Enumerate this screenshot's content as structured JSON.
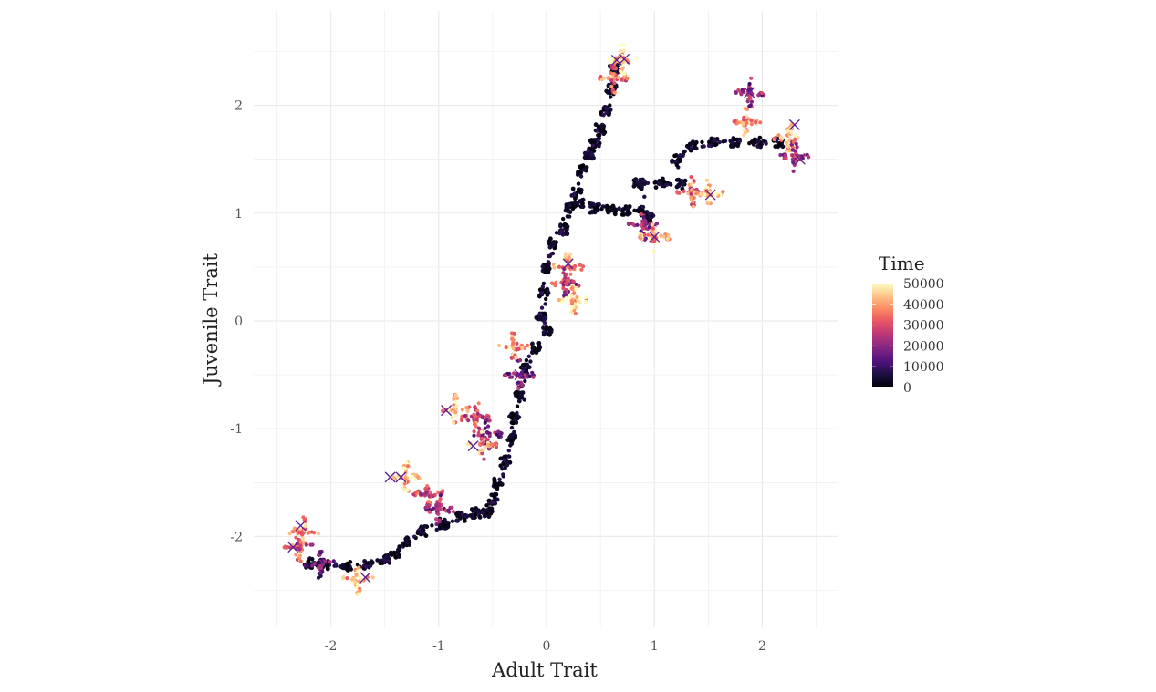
{
  "chart_data": {
    "type": "scatter",
    "xlabel": "Adult Trait",
    "ylabel": "Juvenile Trait",
    "xlim": [
      -2.6,
      2.7
    ],
    "ylim": [
      -2.85,
      2.6
    ],
    "x_ticks": [
      -2,
      -1,
      0,
      1,
      2
    ],
    "y_ticks": [
      -2,
      -1,
      0,
      1,
      2
    ],
    "x_tick_labels": [
      "-2",
      "-1",
      "0",
      "1",
      "2"
    ],
    "y_tick_labels": [
      "-2",
      "-1",
      "0",
      "1",
      "2"
    ],
    "grid": true,
    "legend": {
      "title": "Time",
      "placement": "right",
      "type": "colorbar",
      "range": [
        0,
        50000
      ],
      "breaks": [
        0,
        10000,
        20000,
        30000,
        40000,
        50000
      ],
      "labels": [
        "0",
        "10000",
        "20000",
        "30000",
        "40000",
        "50000"
      ]
    },
    "colormap": [
      "#000004",
      "#1c1044",
      "#4f127b",
      "#812581",
      "#b5367a",
      "#e55064",
      "#fb8761",
      "#fec287",
      "#fcfdbf"
    ],
    "trajectory": [
      [
        0.0,
        -0.1
      ],
      [
        -0.05,
        0.05
      ],
      [
        -0.02,
        0.25
      ],
      [
        0.0,
        0.5
      ],
      [
        0.05,
        0.72
      ],
      [
        0.15,
        0.85
      ],
      [
        0.22,
        1.05
      ],
      [
        0.28,
        1.2
      ],
      [
        0.33,
        1.4
      ],
      [
        0.4,
        1.55
      ],
      [
        0.45,
        1.65
      ],
      [
        0.5,
        1.78
      ],
      [
        0.55,
        1.95
      ],
      [
        0.6,
        2.15
      ],
      [
        0.62,
        2.35
      ],
      [
        0.3,
        1.1
      ],
      [
        0.45,
        1.05
      ],
      [
        0.6,
        1.03
      ],
      [
        0.75,
        1.03
      ],
      [
        0.9,
        1.02
      ],
      [
        0.95,
        0.95
      ],
      [
        0.85,
        1.27
      ],
      [
        1.05,
        1.28
      ],
      [
        1.25,
        1.27
      ],
      [
        1.2,
        1.5
      ],
      [
        1.35,
        1.62
      ],
      [
        1.55,
        1.65
      ],
      [
        1.75,
        1.66
      ],
      [
        1.95,
        1.66
      ],
      [
        2.15,
        1.66
      ],
      [
        -0.1,
        -0.25
      ],
      [
        -0.2,
        -0.45
      ],
      [
        -0.25,
        -0.7
      ],
      [
        -0.3,
        -0.9
      ],
      [
        -0.32,
        -1.1
      ],
      [
        -0.38,
        -1.3
      ],
      [
        -0.45,
        -1.5
      ],
      [
        -0.5,
        -1.65
      ],
      [
        -0.55,
        -1.78
      ],
      [
        -0.65,
        -1.78
      ],
      [
        -0.8,
        -1.82
      ],
      [
        -0.95,
        -1.88
      ],
      [
        -1.15,
        -1.95
      ],
      [
        -1.3,
        -2.05
      ],
      [
        -1.4,
        -2.15
      ],
      [
        -1.5,
        -2.22
      ],
      [
        -1.65,
        -2.26
      ],
      [
        -1.85,
        -2.27
      ],
      [
        -2.05,
        -2.26
      ],
      [
        -2.2,
        -2.25
      ]
    ],
    "clusters": [
      {
        "x": 0.62,
        "y": 2.25,
        "t": 35000
      },
      {
        "x": 0.7,
        "y": 2.42,
        "t": 45000
      },
      {
        "x": 1.88,
        "y": 2.12,
        "t": 20000
      },
      {
        "x": 1.85,
        "y": 1.85,
        "t": 38000
      },
      {
        "x": 2.25,
        "y": 1.7,
        "t": 42000
      },
      {
        "x": 2.3,
        "y": 1.52,
        "t": 25000
      },
      {
        "x": 1.35,
        "y": 1.2,
        "t": 35000
      },
      {
        "x": 1.5,
        "y": 1.18,
        "t": 45000
      },
      {
        "x": 0.9,
        "y": 0.88,
        "t": 22000
      },
      {
        "x": 1.0,
        "y": 0.78,
        "t": 40000
      },
      {
        "x": 0.2,
        "y": 0.5,
        "t": 40000
      },
      {
        "x": 0.18,
        "y": 0.35,
        "t": 25000
      },
      {
        "x": 0.25,
        "y": 0.2,
        "t": 45000
      },
      {
        "x": -0.3,
        "y": -0.25,
        "t": 40000
      },
      {
        "x": -0.25,
        "y": -0.5,
        "t": 18000
      },
      {
        "x": -0.85,
        "y": -0.82,
        "t": 42000
      },
      {
        "x": -0.65,
        "y": -0.9,
        "t": 30000
      },
      {
        "x": -0.55,
        "y": -1.05,
        "t": 20000
      },
      {
        "x": -0.6,
        "y": -1.15,
        "t": 38000
      },
      {
        "x": -1.3,
        "y": -1.45,
        "t": 45000
      },
      {
        "x": -1.1,
        "y": -1.6,
        "t": 30000
      },
      {
        "x": -1.0,
        "y": -1.75,
        "t": 22000
      },
      {
        "x": -2.25,
        "y": -1.95,
        "t": 40000
      },
      {
        "x": -2.3,
        "y": -2.1,
        "t": 32000
      },
      {
        "x": -2.1,
        "y": -2.25,
        "t": 15000
      },
      {
        "x": -1.75,
        "y": -2.4,
        "t": 42000
      }
    ],
    "endpoints": [
      {
        "x": 0.65,
        "y": 2.42
      },
      {
        "x": 0.72,
        "y": 2.43
      },
      {
        "x": 1.88,
        "y": 2.12
      },
      {
        "x": 2.3,
        "y": 1.82
      },
      {
        "x": 2.35,
        "y": 1.5
      },
      {
        "x": 1.52,
        "y": 1.17
      },
      {
        "x": 1.0,
        "y": 0.78
      },
      {
        "x": 0.2,
        "y": 0.53
      },
      {
        "x": -0.25,
        "y": -0.5
      },
      {
        "x": -0.93,
        "y": -0.83
      },
      {
        "x": -0.68,
        "y": -1.16
      },
      {
        "x": -1.45,
        "y": -1.45
      },
      {
        "x": -1.35,
        "y": -1.45
      },
      {
        "x": -2.28,
        "y": -1.9
      },
      {
        "x": -2.35,
        "y": -2.1
      },
      {
        "x": -1.68,
        "y": -2.38
      }
    ]
  }
}
